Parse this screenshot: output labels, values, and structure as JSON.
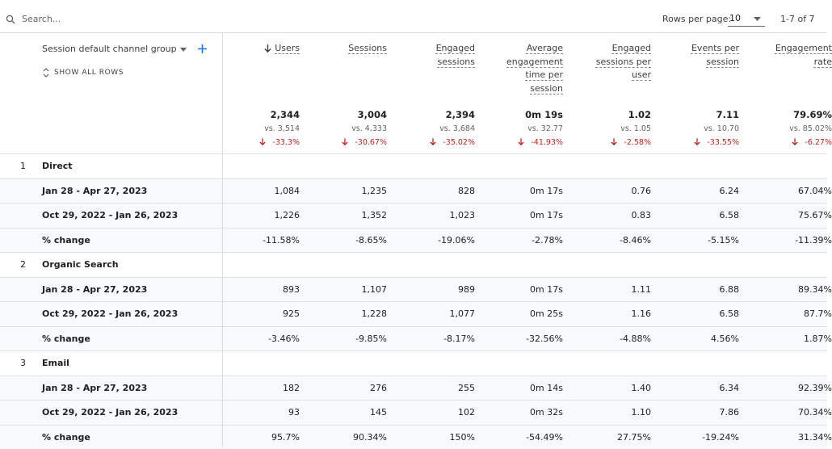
{
  "search_placeholder": "Search...",
  "pagination": {
    "rows_per_page_label": "Rows per page:",
    "rows_per_page": "10",
    "range": "1-7 of 7"
  },
  "dimension": {
    "label": "Session default channel group",
    "show_all": "SHOW ALL ROWS"
  },
  "columns": [
    {
      "label": "Users",
      "total": "2,344",
      "compare": "vs. 3,514",
      "change": "-33.3%"
    },
    {
      "label": "Sessions",
      "total": "3,004",
      "compare": "vs. 4,333",
      "change": "-30.67%"
    },
    {
      "label": "Engaged sessions",
      "total": "2,394",
      "compare": "vs. 3,684",
      "change": "-35.02%"
    },
    {
      "label": "Average engagement time per session",
      "total": "0m 19s",
      "compare": "vs. 32.77",
      "change": "-41.93%"
    },
    {
      "label": "Engaged sessions per user",
      "total": "1.02",
      "compare": "vs. 1.05",
      "change": "-2.58%"
    },
    {
      "label": "Events per session",
      "total": "7.11",
      "compare": "vs. 10.70",
      "change": "-33.55%"
    },
    {
      "label": "Engagement rate",
      "total": "79.69%",
      "compare": "vs. 85.02%",
      "change": "-6.27%"
    }
  ],
  "groups": [
    {
      "index": "1",
      "name": "Direct",
      "rows": [
        {
          "label": "Jan 28 - Apr 27, 2023",
          "values": [
            "1,084",
            "1,235",
            "828",
            "0m 17s",
            "0.76",
            "6.24",
            "67.04%"
          ]
        },
        {
          "label": "Oct 29, 2022 - Jan 26, 2023",
          "values": [
            "1,226",
            "1,352",
            "1,023",
            "0m 17s",
            "0.83",
            "6.58",
            "75.67%"
          ]
        },
        {
          "label": "% change",
          "values": [
            "-11.58%",
            "-8.65%",
            "-19.06%",
            "-2.78%",
            "-8.46%",
            "-5.15%",
            "-11.39%"
          ]
        }
      ]
    },
    {
      "index": "2",
      "name": "Organic Search",
      "rows": [
        {
          "label": "Jan 28 - Apr 27, 2023",
          "values": [
            "893",
            "1,107",
            "989",
            "0m 17s",
            "1.11",
            "6.88",
            "89.34%"
          ]
        },
        {
          "label": "Oct 29, 2022 - Jan 26, 2023",
          "values": [
            "925",
            "1,228",
            "1,077",
            "0m 25s",
            "1.16",
            "6.58",
            "87.7%"
          ]
        },
        {
          "label": "% change",
          "values": [
            "-3.46%",
            "-9.85%",
            "-8.17%",
            "-32.56%",
            "-4.88%",
            "4.56%",
            "1.87%"
          ]
        }
      ]
    },
    {
      "index": "3",
      "name": "Email",
      "rows": [
        {
          "label": "Jan 28 - Apr 27, 2023",
          "values": [
            "182",
            "276",
            "255",
            "0m 14s",
            "1.40",
            "6.34",
            "92.39%"
          ]
        },
        {
          "label": "Oct 29, 2022 - Jan 26, 2023",
          "values": [
            "93",
            "145",
            "102",
            "0m 32s",
            "1.10",
            "7.86",
            "70.34%"
          ]
        },
        {
          "label": "% change",
          "values": [
            "95.7%",
            "90.34%",
            "150%",
            "-54.49%",
            "27.75%",
            "-19.24%",
            "31.34%"
          ]
        }
      ]
    }
  ]
}
